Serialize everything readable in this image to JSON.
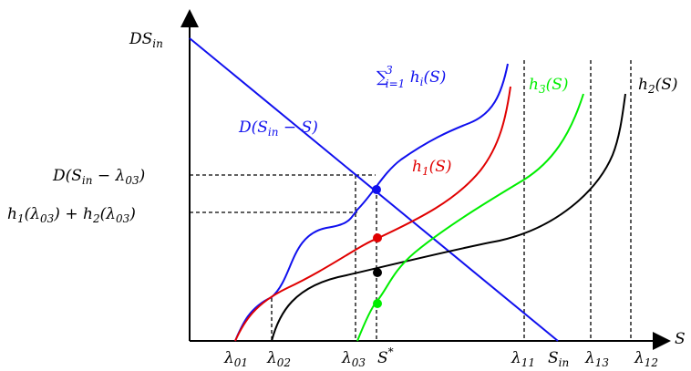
{
  "colors": {
    "blue": "#1010ee",
    "red": "#e00000",
    "green": "#00ee00",
    "black": "#000000"
  },
  "axes": {
    "y_label_main": "DS",
    "y_label_sub": "in",
    "x_label": "S"
  },
  "x_ticks": [
    {
      "main": "λ",
      "sub": "01"
    },
    {
      "main": "λ",
      "sub": "02"
    },
    {
      "main": "λ",
      "sub": "03"
    },
    {
      "main": "S",
      "sup": "*"
    },
    {
      "main": "λ",
      "sub": "11"
    },
    {
      "main": "S",
      "sub": "in"
    },
    {
      "main": "λ",
      "sub": "13"
    },
    {
      "main": "λ",
      "sub": "12"
    }
  ],
  "y_ticks": [
    {
      "text_a": "D(S",
      "text_a_sub": "in",
      "text_b": " − λ",
      "text_b_sub": "03",
      "text_c": ")"
    },
    {
      "text_a": "h",
      "text_a_sub": "1",
      "text_b": "(λ",
      "text_b_sub": "03",
      "text_c": ") + h",
      "text_c_sub": "2",
      "text_d": "(λ",
      "text_d_sub": "03",
      "text_e": ")"
    }
  ],
  "curve_labels": {
    "line": {
      "a": "D(S",
      "a_sub": "in",
      "b": " − S)"
    },
    "sum": {
      "sigma": "∑",
      "sigma_sup": "3",
      "sigma_sub": "i=1",
      "text": " h",
      "text_sub": "i",
      "tail": "(S)"
    },
    "h1": {
      "text": "h",
      "sub": "1",
      "tail": "(S)"
    },
    "h2": {
      "text": "h",
      "sub": "2",
      "tail": "(S)"
    },
    "h3": {
      "text": "h",
      "sub": "3",
      "tail": "(S)"
    }
  }
}
